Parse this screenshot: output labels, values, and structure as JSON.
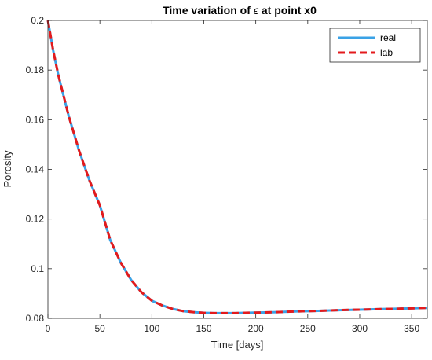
{
  "chart_data": {
    "type": "line",
    "title_prefix": "Time variation of ",
    "title_symbol": "ϵ",
    "title_suffix": " at point x0",
    "xlabel": "Time [days]",
    "ylabel": "Porosity",
    "xlim": [
      0,
      365
    ],
    "ylim": [
      0.08,
      0.2
    ],
    "xticks": [
      0,
      50,
      100,
      150,
      200,
      250,
      300,
      350
    ],
    "yticks": [
      0.08,
      0.1,
      0.12,
      0.14,
      0.16,
      0.18,
      0.2
    ],
    "grid": false,
    "legend_position": "top-right",
    "x": [
      0,
      5,
      10,
      20,
      30,
      40,
      50,
      60,
      70,
      80,
      90,
      100,
      110,
      120,
      130,
      140,
      150,
      160,
      170,
      180,
      190,
      200,
      220,
      240,
      260,
      280,
      300,
      320,
      340,
      365
    ],
    "series": [
      {
        "name": "real",
        "color": "#3aa2e6",
        "style": "solid",
        "values": [
          0.2,
          0.188,
          0.178,
          0.1615,
          0.1475,
          0.1355,
          0.1255,
          0.1115,
          0.1025,
          0.0955,
          0.0905,
          0.0871,
          0.0852,
          0.0838,
          0.0829,
          0.0825,
          0.0822,
          0.0821,
          0.0821,
          0.0821,
          0.0822,
          0.0823,
          0.0825,
          0.0828,
          0.083,
          0.0833,
          0.0835,
          0.0837,
          0.0839,
          0.0842
        ]
      },
      {
        "name": "lab",
        "color": "#e31a1c",
        "style": "dashed",
        "values": [
          0.2,
          0.188,
          0.178,
          0.1615,
          0.1475,
          0.1355,
          0.1255,
          0.1115,
          0.1025,
          0.0955,
          0.0905,
          0.0871,
          0.0852,
          0.0838,
          0.0829,
          0.0825,
          0.0822,
          0.0821,
          0.0821,
          0.0821,
          0.0822,
          0.0823,
          0.0825,
          0.0828,
          0.083,
          0.0833,
          0.0835,
          0.0837,
          0.0839,
          0.0842
        ]
      }
    ]
  },
  "colors": {
    "axis": "#262626",
    "background": "#ffffff"
  }
}
